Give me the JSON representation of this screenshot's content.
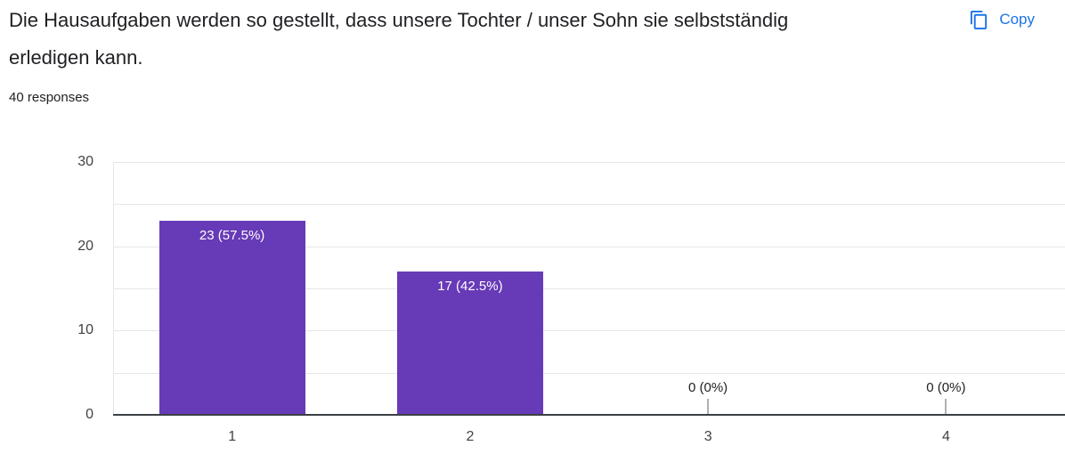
{
  "header": {
    "title": "Die Hausaufgaben werden so gestellt, dass unsere Tochter / unser Sohn sie selbstständig erledigen kann.",
    "responses_label": "40 responses",
    "copy_label": "Copy"
  },
  "colors": {
    "bar": "#673ab7",
    "accent_blue": "#1a73e8",
    "axis_line": "#3c4043",
    "gridline": "#e6e6e6",
    "axis_text": "#424242",
    "title_text": "#202124",
    "bar_label_text": "#ffffff",
    "zero_tick": "#b0b0b0"
  },
  "chart_data": {
    "type": "bar",
    "title": "Die Hausaufgaben werden so gestellt, dass unsere Tochter / unser Sohn sie selbstständig erledigen kann.",
    "subtitle": "40 responses",
    "total_responses": 40,
    "categories": [
      "1",
      "2",
      "3",
      "4"
    ],
    "values": [
      23,
      17,
      0,
      0
    ],
    "value_labels": [
      "23 (57.5%)",
      "17 (42.5%)",
      "0 (0%)",
      "0 (0%)"
    ],
    "xlabel": "",
    "ylabel": "",
    "ylim": [
      0,
      30
    ],
    "ytick_step": 10,
    "grid_step": 5,
    "grid": true,
    "legend": "none"
  }
}
